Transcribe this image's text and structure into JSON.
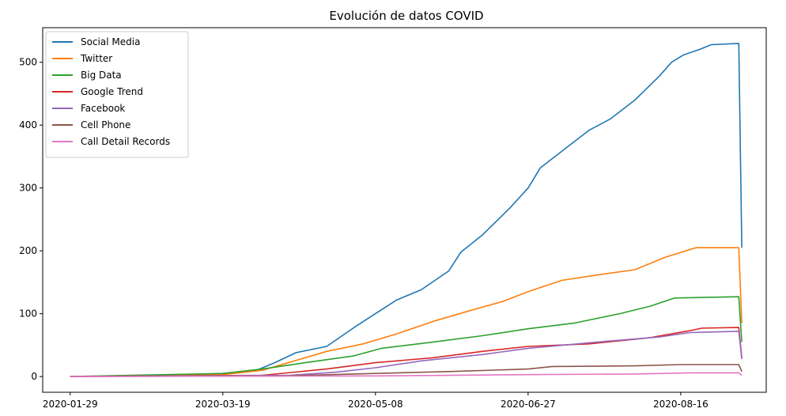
{
  "chart_data": {
    "type": "line",
    "title": "Evolución de datos COVID",
    "xlabel": "",
    "ylabel": "",
    "x_range": [
      "2020-01-20",
      "2020-09-13"
    ],
    "ylim": [
      -25,
      555
    ],
    "x_ticks": [
      "2020-01-29",
      "2020-03-19",
      "2020-05-08",
      "2020-06-27",
      "2020-08-16"
    ],
    "y_ticks": [
      0,
      100,
      200,
      300,
      400,
      500
    ],
    "grid": false,
    "legend_position": "upper-left",
    "series": [
      {
        "name": "Social Media",
        "color": "#1f77b4",
        "points": [
          [
            "2020-01-29",
            0
          ],
          [
            "2020-03-05",
            2
          ],
          [
            "2020-03-19",
            5
          ],
          [
            "2020-03-30",
            10
          ],
          [
            "2020-04-05",
            22
          ],
          [
            "2020-04-12",
            38
          ],
          [
            "2020-04-22",
            48
          ],
          [
            "2020-05-01",
            78
          ],
          [
            "2020-05-08",
            100
          ],
          [
            "2020-05-15",
            122
          ],
          [
            "2020-05-23",
            138
          ],
          [
            "2020-06-01",
            168
          ],
          [
            "2020-06-05",
            198
          ],
          [
            "2020-06-12",
            225
          ],
          [
            "2020-06-21",
            268
          ],
          [
            "2020-06-27",
            300
          ],
          [
            "2020-07-01",
            332
          ],
          [
            "2020-07-09",
            362
          ],
          [
            "2020-07-17",
            392
          ],
          [
            "2020-07-24",
            410
          ],
          [
            "2020-08-01",
            440
          ],
          [
            "2020-08-09",
            478
          ],
          [
            "2020-08-13",
            500
          ],
          [
            "2020-08-17",
            512
          ],
          [
            "2020-08-22",
            520
          ],
          [
            "2020-08-26",
            528
          ],
          [
            "2020-09-04",
            530
          ],
          [
            "2020-09-05",
            205
          ]
        ]
      },
      {
        "name": "Twitter",
        "color": "#ff7f0e",
        "points": [
          [
            "2020-01-29",
            0
          ],
          [
            "2020-03-19",
            3
          ],
          [
            "2020-04-01",
            10
          ],
          [
            "2020-04-08",
            20
          ],
          [
            "2020-04-22",
            40
          ],
          [
            "2020-05-04",
            52
          ],
          [
            "2020-05-15",
            68
          ],
          [
            "2020-05-27",
            88
          ],
          [
            "2020-06-08",
            105
          ],
          [
            "2020-06-19",
            120
          ],
          [
            "2020-06-27",
            135
          ],
          [
            "2020-07-08",
            153
          ],
          [
            "2020-07-20",
            162
          ],
          [
            "2020-08-01",
            170
          ],
          [
            "2020-08-11",
            190
          ],
          [
            "2020-08-21",
            205
          ],
          [
            "2020-09-04",
            205
          ],
          [
            "2020-09-05",
            85
          ]
        ]
      },
      {
        "name": "Big Data",
        "color": "#2ca02c",
        "points": [
          [
            "2020-01-29",
            0
          ],
          [
            "2020-03-19",
            5
          ],
          [
            "2020-04-01",
            12
          ],
          [
            "2020-04-15",
            22
          ],
          [
            "2020-05-01",
            33
          ],
          [
            "2020-05-10",
            45
          ],
          [
            "2020-05-27",
            55
          ],
          [
            "2020-06-12",
            65
          ],
          [
            "2020-06-27",
            76
          ],
          [
            "2020-07-12",
            85
          ],
          [
            "2020-07-27",
            100
          ],
          [
            "2020-08-06",
            112
          ],
          [
            "2020-08-14",
            125
          ],
          [
            "2020-09-04",
            127
          ],
          [
            "2020-09-05",
            55
          ]
        ]
      },
      {
        "name": "Google Trend",
        "color": "#d62728",
        "points": [
          [
            "2020-01-29",
            0
          ],
          [
            "2020-04-01",
            2
          ],
          [
            "2020-04-22",
            12
          ],
          [
            "2020-05-08",
            22
          ],
          [
            "2020-05-27",
            30
          ],
          [
            "2020-06-12",
            40
          ],
          [
            "2020-06-27",
            48
          ],
          [
            "2020-07-17",
            52
          ],
          [
            "2020-08-06",
            62
          ],
          [
            "2020-08-19",
            73
          ],
          [
            "2020-08-23",
            77
          ],
          [
            "2020-09-04",
            78
          ],
          [
            "2020-09-05",
            30
          ]
        ]
      },
      {
        "name": "Facebook",
        "color": "#9467bd",
        "points": [
          [
            "2020-01-29",
            0
          ],
          [
            "2020-04-10",
            2
          ],
          [
            "2020-04-25",
            7
          ],
          [
            "2020-05-08",
            14
          ],
          [
            "2020-05-23",
            25
          ],
          [
            "2020-06-12",
            35
          ],
          [
            "2020-06-27",
            45
          ],
          [
            "2020-07-20",
            55
          ],
          [
            "2020-08-09",
            63
          ],
          [
            "2020-08-19",
            70
          ],
          [
            "2020-09-04",
            72
          ],
          [
            "2020-09-05",
            28
          ]
        ]
      },
      {
        "name": "Cell Phone",
        "color": "#8c564b",
        "points": [
          [
            "2020-01-29",
            0
          ],
          [
            "2020-04-08",
            1
          ],
          [
            "2020-05-08",
            5
          ],
          [
            "2020-06-01",
            8
          ],
          [
            "2020-06-27",
            12
          ],
          [
            "2020-07-05",
            16
          ],
          [
            "2020-08-01",
            17
          ],
          [
            "2020-08-16",
            19
          ],
          [
            "2020-09-04",
            19
          ],
          [
            "2020-09-05",
            8
          ]
        ]
      },
      {
        "name": "Call Detail Records",
        "color": "#e377c2",
        "points": [
          [
            "2020-01-29",
            0
          ],
          [
            "2020-05-08",
            1
          ],
          [
            "2020-06-27",
            3
          ],
          [
            "2020-08-01",
            4
          ],
          [
            "2020-08-19",
            6
          ],
          [
            "2020-09-04",
            6
          ],
          [
            "2020-09-05",
            2
          ]
        ]
      }
    ]
  }
}
